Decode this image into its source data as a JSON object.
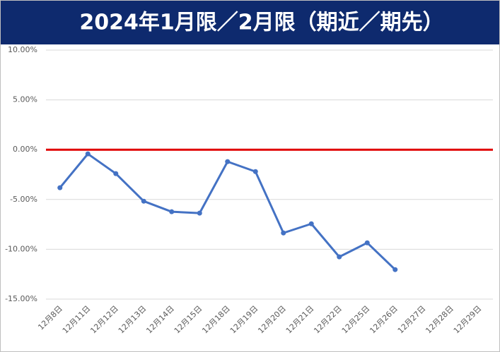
{
  "chart_data": {
    "type": "line",
    "title": "2024年1月限／2月限（期近／期先）",
    "categories": [
      "12月8日",
      "12月11日",
      "12月12日",
      "12月13日",
      "12月14日",
      "12月15日",
      "12月18日",
      "12月19日",
      "12月20日",
      "12月21日",
      "12月22日",
      "12月25日",
      "12月26日",
      "12月27日",
      "12月28日",
      "12月29日"
    ],
    "series": [
      {
        "name": "期近／期先",
        "color": "#4472c4",
        "values": [
          -3.82,
          -0.42,
          -2.4,
          -5.17,
          -6.23,
          -6.37,
          -1.2,
          -2.2,
          -8.36,
          -7.44,
          -10.76,
          -9.35,
          -12.04,
          null,
          null,
          null
        ]
      }
    ],
    "ylim": [
      -15,
      10
    ],
    "yticks": [
      {
        "value": -15,
        "label": "-15.00%"
      },
      {
        "value": -10,
        "label": "-10.00%"
      },
      {
        "value": -5,
        "label": "-5.00%"
      },
      {
        "value": 0,
        "label": "0.00%"
      },
      {
        "value": 5,
        "label": "5.00%"
      },
      {
        "value": 10,
        "label": "10.00%"
      }
    ],
    "grid": true,
    "zero_line_color": "#e00000",
    "title_background": "#0e2a6e"
  }
}
